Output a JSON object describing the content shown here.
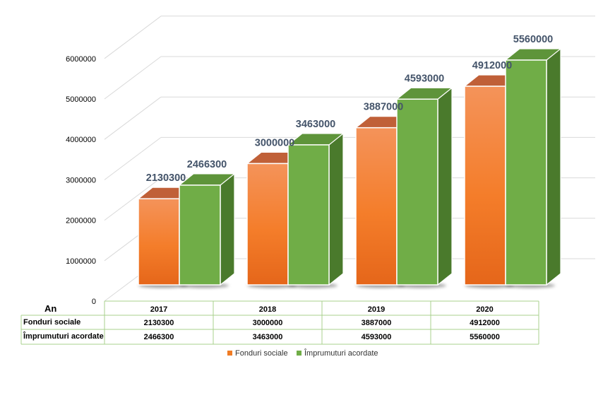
{
  "chart_data": {
    "type": "bar",
    "title": "",
    "xlabel": "",
    "ylabel": "",
    "categories": [
      "2017",
      "2018",
      "2019",
      "2020"
    ],
    "series": [
      {
        "name": "Fonduri sociale",
        "values": [
          2130300,
          3000000,
          3887000,
          4912000
        ],
        "color": "#f07c24"
      },
      {
        "name": "Împrumuturi acordate",
        "values": [
          2466300,
          3463000,
          4593000,
          5560000
        ],
        "color": "#70ad47"
      }
    ],
    "ylim": [
      0,
      6000000
    ],
    "yticks": [
      0,
      1000000,
      2000000,
      3000000,
      4000000,
      5000000,
      6000000
    ],
    "grid": true,
    "projection": "3d",
    "data_table": {
      "corner_label": "An",
      "shown": true
    },
    "legend": "bottom"
  }
}
